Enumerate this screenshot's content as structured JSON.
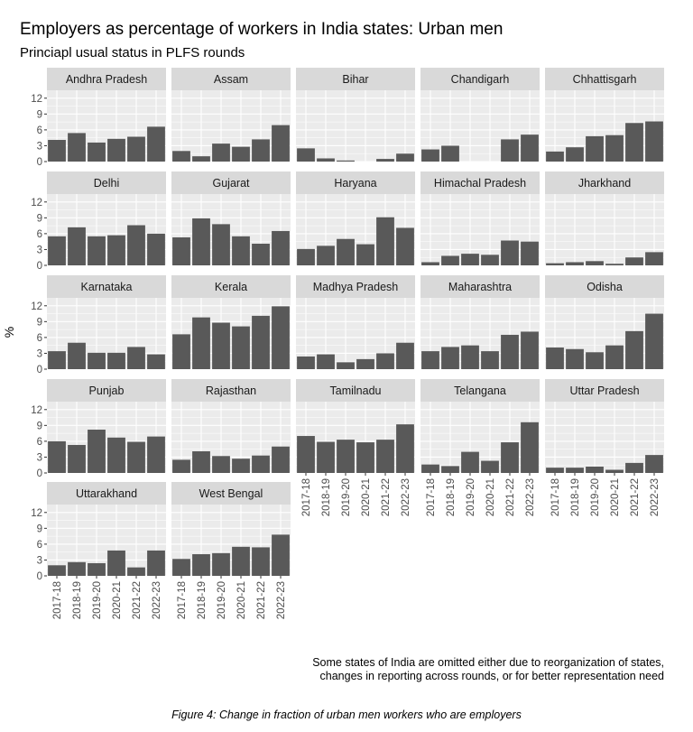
{
  "title": "Employers as percentage of workers in India states: Urban men",
  "subtitle": "Princiapl usual status in PLFS rounds",
  "note_line1": "Some states of India are omitted either due to reorganization of states,",
  "note_line2": "changes in reporting across rounds, or for better representation need",
  "caption": "Figure 4: Change in fraction of urban men workers who are employers",
  "colors": {
    "bar": "#595959",
    "panel_bg": "#ebebeb",
    "strip_bg": "#d9d9d9",
    "grid": "#ffffff"
  },
  "chart_data": {
    "type": "bar",
    "facet": "state",
    "ylabel": "%",
    "xlabel": "",
    "ylim": [
      0,
      13.5
    ],
    "yticks": [
      0,
      3,
      6,
      9,
      12
    ],
    "categories": [
      "2017-18",
      "2018-19",
      "2019-20",
      "2020-21",
      "2021-22",
      "2022-23"
    ],
    "panels": [
      {
        "name": "Andhra Pradesh",
        "values": [
          4.1,
          5.4,
          3.6,
          4.3,
          4.7,
          6.6
        ]
      },
      {
        "name": "Assam",
        "values": [
          2.0,
          1.0,
          3.4,
          2.8,
          4.2,
          6.9
        ]
      },
      {
        "name": "Bihar",
        "values": [
          2.5,
          0.6,
          0.2,
          0.0,
          0.5,
          1.5
        ]
      },
      {
        "name": "Chandigarh",
        "values": [
          2.3,
          3.0,
          0.0,
          0.0,
          4.2,
          5.1
        ]
      },
      {
        "name": "Chhattisgarh",
        "values": [
          1.9,
          2.7,
          4.8,
          5.0,
          7.3,
          7.6
        ]
      },
      {
        "name": "Delhi",
        "values": [
          5.5,
          7.2,
          5.5,
          5.7,
          7.6,
          6.0
        ]
      },
      {
        "name": "Gujarat",
        "values": [
          5.3,
          8.9,
          7.8,
          5.5,
          4.1,
          6.5
        ]
      },
      {
        "name": "Haryana",
        "values": [
          3.1,
          3.7,
          5.0,
          4.0,
          9.1,
          7.1
        ]
      },
      {
        "name": "Himachal Pradesh",
        "values": [
          0.6,
          1.8,
          2.2,
          2.0,
          4.7,
          4.5
        ]
      },
      {
        "name": "Jharkhand",
        "values": [
          0.4,
          0.6,
          0.8,
          0.3,
          1.5,
          2.5
        ]
      },
      {
        "name": "Karnataka",
        "values": [
          3.4,
          5.0,
          3.1,
          3.1,
          4.2,
          2.8
        ]
      },
      {
        "name": "Kerala",
        "values": [
          6.6,
          9.8,
          8.8,
          8.1,
          10.1,
          11.9
        ]
      },
      {
        "name": "Madhya Pradesh",
        "values": [
          2.4,
          2.8,
          1.3,
          1.9,
          3.0,
          5.0
        ]
      },
      {
        "name": "Maharashtra",
        "values": [
          3.4,
          4.2,
          4.5,
          3.4,
          6.5,
          7.1
        ]
      },
      {
        "name": "Odisha",
        "values": [
          4.1,
          3.8,
          3.2,
          4.5,
          7.2,
          10.5
        ]
      },
      {
        "name": "Punjab",
        "values": [
          6.0,
          5.3,
          8.2,
          6.7,
          5.9,
          6.9
        ]
      },
      {
        "name": "Rajasthan",
        "values": [
          2.5,
          4.1,
          3.2,
          2.7,
          3.3,
          5.0
        ]
      },
      {
        "name": "Tamilnadu",
        "values": [
          7.0,
          5.9,
          6.3,
          5.8,
          6.3,
          9.2
        ]
      },
      {
        "name": "Telangana",
        "values": [
          1.6,
          1.3,
          4.0,
          2.3,
          5.8,
          9.6
        ]
      },
      {
        "name": "Uttar Pradesh",
        "values": [
          1.0,
          1.0,
          1.2,
          0.6,
          1.9,
          3.4
        ]
      },
      {
        "name": "Uttarakhand",
        "values": [
          2.0,
          2.6,
          2.4,
          4.8,
          1.6,
          4.8
        ]
      },
      {
        "name": "West Bengal",
        "values": [
          3.2,
          4.1,
          4.3,
          5.5,
          5.4,
          7.8
        ]
      }
    ]
  }
}
